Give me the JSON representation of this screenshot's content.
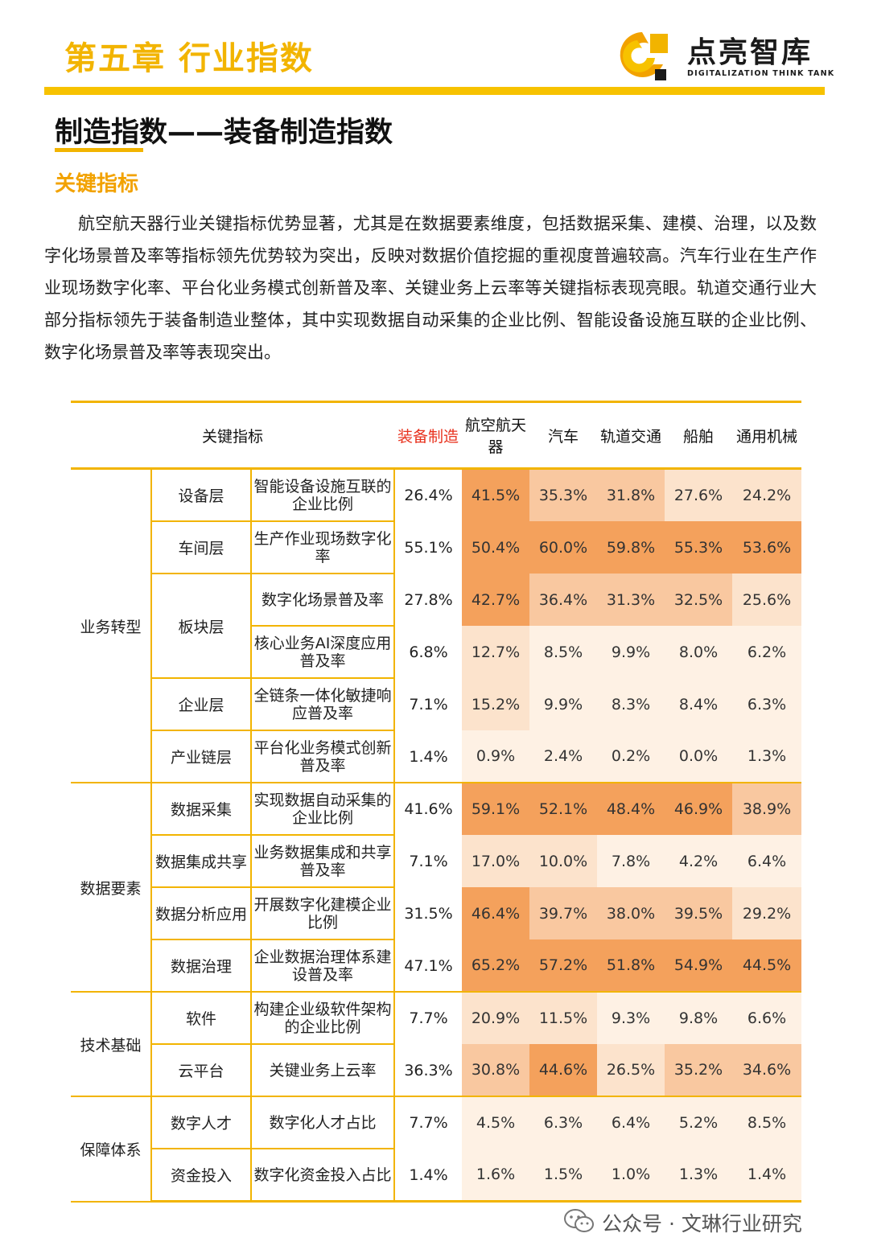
{
  "header": {
    "chapter": "第五章  行业指数",
    "logo_cn": "点亮智库",
    "logo_en": "DIGITALIZATION THINK TANK",
    "logo_icon": "logo-c-icon",
    "accent_color": "#f7c200"
  },
  "section": {
    "title": "制造指数——装备制造指数",
    "subheading": "关键指标",
    "body": "航空航天器行业关键指标优势显著，尤其是在数据要素维度，包括数据采集、建模、治理，以及数字化场景普及率等指标领先优势较为突出，反映对数据价值挖掘的重视度普遍较高。汽车行业在生产作业现场数字化率、平台化业务模式创新普及率、关键业务上云率等关键指标表现亮眼。轨道交通行业大部分指标领先于装备制造业整体，其中实现数据自动采集的企业比例、智能设备设施互联的企业比例、数字化场景普及率等表现突出。"
  },
  "table": {
    "headers": {
      "key": "关键指标",
      "overall": "装备制造",
      "industries": [
        "航空航天器",
        "汽车",
        "轨道交通",
        "船舶",
        "通用机械"
      ]
    },
    "groups": [
      {
        "name": "业务转型",
        "levels": [
          {
            "name": "设备层",
            "rows": [
              {
                "metric": "智能设备设施互联的企业比例",
                "overall": "26.4%",
                "values": [
                  "41.5%",
                  "35.3%",
                  "31.8%",
                  "27.6%",
                  "24.2%"
                ]
              }
            ]
          },
          {
            "name": "车间层",
            "rows": [
              {
                "metric": "生产作业现场数字化率",
                "overall": "55.1%",
                "values": [
                  "50.4%",
                  "60.0%",
                  "59.8%",
                  "55.3%",
                  "53.6%"
                ]
              }
            ]
          },
          {
            "name": "板块层",
            "rows": [
              {
                "metric": "数字化场景普及率",
                "overall": "27.8%",
                "values": [
                  "42.7%",
                  "36.4%",
                  "31.3%",
                  "32.5%",
                  "25.6%"
                ]
              },
              {
                "metric": "核心业务AI深度应用普及率",
                "overall": "6.8%",
                "values": [
                  "12.7%",
                  "8.5%",
                  "9.9%",
                  "8.0%",
                  "6.2%"
                ]
              }
            ]
          },
          {
            "name": "企业层",
            "rows": [
              {
                "metric": "全链条一体化敏捷响应普及率",
                "overall": "7.1%",
                "values": [
                  "15.2%",
                  "9.9%",
                  "8.3%",
                  "8.4%",
                  "6.3%"
                ]
              }
            ]
          },
          {
            "name": "产业链层",
            "rows": [
              {
                "metric": "平台化业务模式创新普及率",
                "overall": "1.4%",
                "values": [
                  "0.9%",
                  "2.4%",
                  "0.2%",
                  "0.0%",
                  "1.3%"
                ]
              }
            ]
          }
        ]
      },
      {
        "name": "数据要素",
        "levels": [
          {
            "name": "数据采集",
            "rows": [
              {
                "metric": "实现数据自动采集的企业比例",
                "overall": "41.6%",
                "values": [
                  "59.1%",
                  "52.1%",
                  "48.4%",
                  "46.9%",
                  "38.9%"
                ]
              }
            ]
          },
          {
            "name": "数据集成共享",
            "rows": [
              {
                "metric": "业务数据集成和共享普及率",
                "overall": "7.1%",
                "values": [
                  "17.0%",
                  "10.0%",
                  "7.8%",
                  "4.2%",
                  "6.4%"
                ]
              }
            ]
          },
          {
            "name": "数据分析应用",
            "rows": [
              {
                "metric": "开展数字化建模企业比例",
                "overall": "31.5%",
                "values": [
                  "46.4%",
                  "39.7%",
                  "38.0%",
                  "39.5%",
                  "29.2%"
                ]
              }
            ]
          },
          {
            "name": "数据治理",
            "rows": [
              {
                "metric": "企业数据治理体系建设普及率",
                "overall": "47.1%",
                "values": [
                  "65.2%",
                  "57.2%",
                  "51.8%",
                  "54.9%",
                  "44.5%"
                ]
              }
            ]
          }
        ]
      },
      {
        "name": "技术基础",
        "levels": [
          {
            "name": "软件",
            "rows": [
              {
                "metric": "构建企业级软件架构的企业比例",
                "overall": "7.7%",
                "values": [
                  "20.9%",
                  "11.5%",
                  "9.3%",
                  "9.8%",
                  "6.6%"
                ]
              }
            ]
          },
          {
            "name": "云平台",
            "rows": [
              {
                "metric": "关键业务上云率",
                "overall": "36.3%",
                "values": [
                  "30.8%",
                  "44.6%",
                  "26.5%",
                  "35.2%",
                  "34.6%"
                ]
              }
            ]
          }
        ]
      },
      {
        "name": "保障体系",
        "levels": [
          {
            "name": "数字人才",
            "rows": [
              {
                "metric": "数字化人才占比",
                "overall": "7.7%",
                "values": [
                  "4.5%",
                  "6.3%",
                  "6.4%",
                  "5.2%",
                  "8.5%"
                ]
              }
            ]
          },
          {
            "name": "资金投入",
            "rows": [
              {
                "metric": "数字化资金投入占比",
                "overall": "1.4%",
                "values": [
                  "1.6%",
                  "1.5%",
                  "1.0%",
                  "1.3%",
                  "1.4%"
                ]
              }
            ]
          }
        ]
      }
    ],
    "heat_colors": {
      "strong": "#f4a15c",
      "mid": "#f9c8a0",
      "light": "#fce3cc",
      "pale": "#fef1e4"
    }
  },
  "watermark": {
    "icon": "wechat-icon",
    "text": "公众号 · 文琳行业研究"
  }
}
